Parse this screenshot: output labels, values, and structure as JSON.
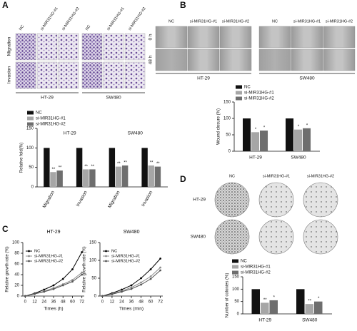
{
  "figure": {
    "A": {
      "letter": "A",
      "columns": [
        "NC",
        "si-MIR31HG-#1",
        "si-MIR31HG-#2",
        "NC",
        "si-MIR31HG-#1",
        "si-MIR31HG-#2"
      ],
      "rows": [
        "Migration",
        "Invasion"
      ],
      "groups": [
        "HT-29",
        "SW480"
      ]
    },
    "B": {
      "letter": "B",
      "columns": [
        "NC",
        "si-MIR31HG-#1",
        "si-MIR31HG-#2",
        "NC",
        "si-MIR31HG-#1",
        "si-MIR31HG-#2"
      ],
      "rows": [
        "0 h",
        "48 h"
      ],
      "groups": [
        "HT-29",
        "SW480"
      ]
    },
    "C": {
      "letter": "C"
    },
    "D": {
      "letter": "D",
      "columns": [
        "NC",
        "si-MIR31HG-#1",
        "si-MIR31HG-#2"
      ],
      "rows": [
        "HT-29",
        "SW480"
      ]
    }
  },
  "chart_data": [
    {
      "type": "bar",
      "ylabel": "Relative fold(%)",
      "categories": [
        "Migration",
        "Invasion",
        "Migration",
        "Invasion"
      ],
      "groups": [
        "HT-29",
        "SW480"
      ],
      "ylim": [
        0,
        150
      ],
      "yticks": [
        0,
        50,
        100,
        150
      ],
      "series": [
        {
          "name": "NC",
          "color": "#111111",
          "values": [
            100,
            100,
            100,
            100
          ]
        },
        {
          "name": "si-MIR31HG-#1",
          "color": "#a6a6a6",
          "values": [
            38,
            45,
            52,
            55
          ],
          "significance": [
            "**",
            "**",
            "**",
            "**"
          ]
        },
        {
          "name": "si-MIR31HG-#2",
          "color": "#6e6e6e",
          "values": [
            42,
            45,
            55,
            52
          ],
          "significance": [
            "**",
            "**",
            "**",
            "**"
          ]
        }
      ]
    },
    {
      "type": "bar",
      "ylabel": "Wound closure (%)",
      "categories": [
        "HT-29",
        "SW480"
      ],
      "ylim": [
        0,
        150
      ],
      "yticks": [
        0,
        50,
        100,
        150
      ],
      "series": [
        {
          "name": "NC",
          "color": "#111111",
          "values": [
            100,
            100
          ]
        },
        {
          "name": "si-MIR31HG-#1",
          "color": "#a6a6a6",
          "values": [
            58,
            66
          ],
          "significance": [
            "*",
            "*"
          ]
        },
        {
          "name": "si-MIR31HG-#2",
          "color": "#6e6e6e",
          "values": [
            63,
            70
          ],
          "significance": [
            "*",
            "*"
          ]
        }
      ]
    },
    {
      "type": "line",
      "title": "HT-29",
      "xlabel": "Times (h)",
      "ylabel": "Relative growth rate (%)",
      "x": [
        0,
        12,
        24,
        36,
        48,
        60,
        72
      ],
      "xlim": [
        -3,
        75
      ],
      "xticks": [
        0,
        12,
        24,
        36,
        48,
        60,
        72
      ],
      "ylim": [
        0,
        100
      ],
      "yticks": [
        0,
        20,
        40,
        60,
        80,
        100
      ],
      "series": [
        {
          "name": "NC",
          "color": "#000000",
          "values": [
            0,
            5,
            12,
            20,
            32,
            50,
            82
          ]
        },
        {
          "name": "si-MIR31HG-#1",
          "color": "#8c8c8c",
          "values": [
            0,
            4,
            9,
            15,
            22,
            30,
            44
          ]
        },
        {
          "name": "si-MIR31HG-#2",
          "color": "#555555",
          "values": [
            0,
            4,
            8,
            13,
            20,
            27,
            40
          ]
        }
      ]
    },
    {
      "type": "line",
      "title": "SW480",
      "xlabel": "Times (min)",
      "ylabel": "Relative growth rate (%)",
      "x": [
        0,
        12,
        24,
        36,
        48,
        60,
        72
      ],
      "xlim": [
        -3,
        75
      ],
      "xticks": [
        0,
        12,
        24,
        36,
        48,
        60,
        72
      ],
      "ylim": [
        0,
        150
      ],
      "yticks": [
        0,
        50,
        100,
        150
      ],
      "series": [
        {
          "name": "NC",
          "color": "#000000",
          "values": [
            0,
            8,
            18,
            30,
            50,
            75,
            105
          ]
        },
        {
          "name": "si-MIR31HG-#1",
          "color": "#8c8c8c",
          "values": [
            0,
            6,
            14,
            24,
            38,
            55,
            80
          ]
        },
        {
          "name": "si-MIR31HG-#2",
          "color": "#555555",
          "values": [
            0,
            5,
            12,
            20,
            32,
            48,
            72
          ]
        }
      ]
    },
    {
      "type": "bar",
      "ylabel": "Number of colonies (%)",
      "categories": [
        "HT-29",
        "SW480"
      ],
      "ylim": [
        0,
        150
      ],
      "yticks": [
        0,
        50,
        100,
        150
      ],
      "series": [
        {
          "name": "NC",
          "color": "#111111",
          "values": [
            100,
            100
          ]
        },
        {
          "name": "si-MIR31HG-#1",
          "color": "#a6a6a6",
          "values": [
            45,
            40
          ],
          "significance": [
            "**",
            "**"
          ]
        },
        {
          "name": "si-MIR31HG-#2",
          "color": "#6e6e6e",
          "values": [
            55,
            50
          ],
          "significance": [
            "*",
            "*"
          ]
        }
      ]
    }
  ]
}
